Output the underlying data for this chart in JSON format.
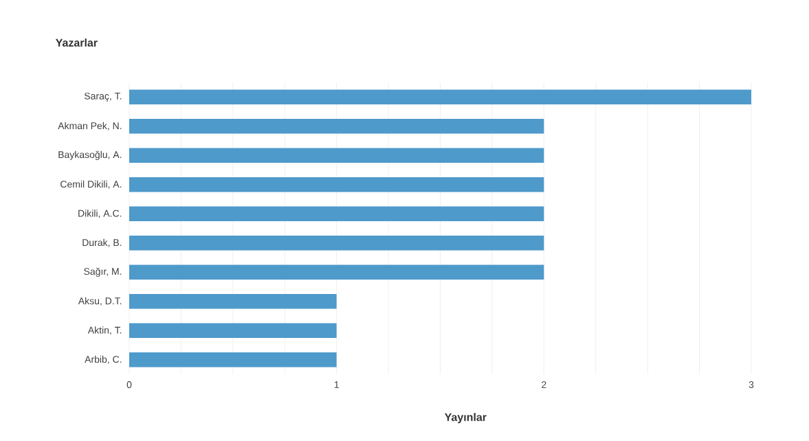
{
  "chart_data": {
    "type": "bar",
    "orientation": "horizontal",
    "ylabel": "Yazarlar",
    "xlabel": "Yayınlar",
    "categories": [
      "Saraç, T.",
      "Akman Pek, N.",
      "Baykasoğlu, A.",
      "Cemil Dikili, A.",
      "Dikili, A.C.",
      "Durak, B.",
      "Sağır, M.",
      "Aksu, D.T.",
      "Aktin, T.",
      "Arbib, C."
    ],
    "values": [
      3,
      2,
      2,
      2,
      2,
      2,
      2,
      1,
      1,
      1
    ],
    "color": "#4e9acb",
    "xlim": [
      0,
      3
    ],
    "xticks": [
      0,
      {
        "value": 0.25,
        "label": null
      },
      {
        "value": 0.5,
        "label": null
      },
      {
        "value": 0.75,
        "label": null
      },
      1,
      {
        "value": 1.25,
        "label": null
      },
      {
        "value": 1.5,
        "label": null
      },
      {
        "value": 1.75,
        "label": null
      },
      2,
      {
        "value": 2.25,
        "label": null
      },
      {
        "value": 2.5,
        "label": null
      },
      {
        "value": 2.75,
        "label": null
      },
      3
    ],
    "grid": true
  }
}
